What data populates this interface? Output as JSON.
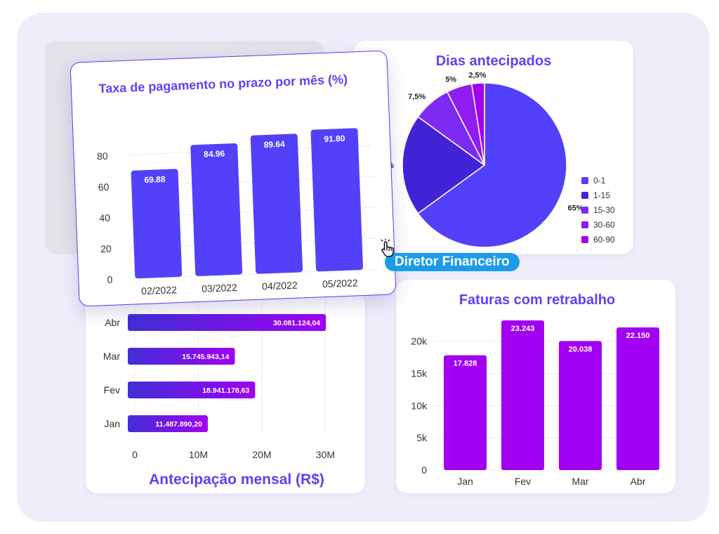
{
  "colors": {
    "title_purple": "#5b42f3",
    "bar_blue": "#5340fa",
    "bar_violet": "#a100f2",
    "badge_blue": "#1c9bea"
  },
  "badge": {
    "label": "Diretor Financeiro",
    "icon": "hand-pointer-icon"
  },
  "chart_data": [
    {
      "type": "bar",
      "title": "Taxa de pagamento no prazo por mês (%)",
      "categories": [
        "02/2022",
        "03/2022",
        "04/2022",
        "05/2022"
      ],
      "values": [
        69.88,
        84.96,
        89.64,
        91.8
      ],
      "data_labels": [
        "69.88",
        "84.96",
        "89.64",
        "91.80"
      ],
      "yticks": [
        "0",
        "20",
        "40",
        "60",
        "80"
      ],
      "ylim": [
        0,
        100
      ],
      "grid": true
    },
    {
      "type": "pie",
      "title": "Dias antecipados",
      "categories": [
        "0-1",
        "1-15",
        "15-30",
        "30-60",
        "60-90"
      ],
      "values": [
        65,
        20,
        7.5,
        5,
        2.5
      ],
      "data_labels": [
        "65%",
        "20%",
        "7,5%",
        "5%",
        "2,5%"
      ],
      "colors": [
        "#5340fa",
        "#4323d8",
        "#7c2bf2",
        "#8f1cf0",
        "#a100f2"
      ],
      "legend": "right"
    },
    {
      "type": "bar",
      "orientation": "horizontal",
      "title": "Antecipação mensal (R$)",
      "categories": [
        "Abr",
        "Mar",
        "Fev",
        "Jan"
      ],
      "values": [
        30081124.04,
        15745943.14,
        18941178.63,
        11487890.2
      ],
      "data_labels": [
        "30.081.124,04",
        "15.745.943,14",
        "18.941.178,63",
        "11.487.890,20"
      ],
      "xticks": [
        "0",
        "10M",
        "20M",
        "30M"
      ],
      "xlim": [
        0,
        31500000
      ],
      "grid": true
    },
    {
      "type": "bar",
      "title": "Faturas com retrabalho",
      "categories": [
        "Jan",
        "Fev",
        "Mar",
        "Abr"
      ],
      "values": [
        17828,
        23243,
        20038,
        22150
      ],
      "data_labels": [
        "17.828",
        "23.243",
        "20.038",
        "22.150"
      ],
      "yticks": [
        "0",
        "5k",
        "10k",
        "15k",
        "20k"
      ],
      "ylim": [
        0,
        24000
      ],
      "grid": true
    }
  ]
}
